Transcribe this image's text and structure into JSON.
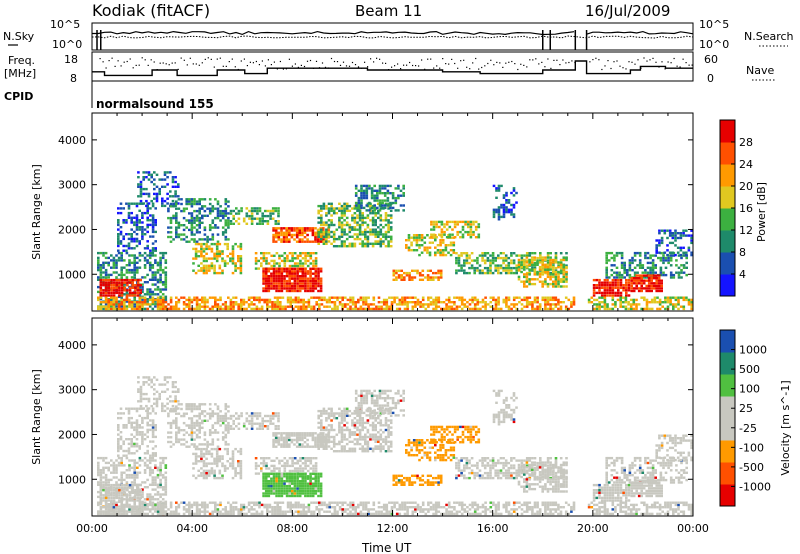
{
  "header": {
    "station": "Kodiak (fitACF)",
    "beam": "Beam 11",
    "date": "16/Jul/2009"
  },
  "status_panel": {
    "left_labels": {
      "nsky": "N.Sky",
      "freq": "Freq.",
      "freq_unit": "[MHz]",
      "cpid": "CPID"
    },
    "right_labels": {
      "nsearch": "N.Search",
      "nave": "Nave"
    },
    "noise_ticks": [
      "10^5",
      "10^0"
    ],
    "freq_ticks": [
      "18",
      "8"
    ],
    "nave_ticks": [
      "60",
      "0"
    ],
    "cpid_text": "normalsound 155"
  },
  "colors": {
    "power_scale": [
      "#1414ff",
      "#1a4fb0",
      "#1e8a6a",
      "#3cb040",
      "#e0c820",
      "#ff9a00",
      "#ff5000",
      "#e60000"
    ],
    "velocity_scale": [
      "#e60000",
      "#ff5000",
      "#ff9a00",
      "#c8c8c0",
      "#c8c8c0",
      "#50c040",
      "#1e8a6a",
      "#1a4fb0"
    ]
  },
  "chart_data": [
    {
      "type": "heatmap",
      "name": "Power",
      "ylabel": "Slant Range [km]",
      "ylim": [
        180,
        4600
      ],
      "y_ticks": [
        "4000",
        "3000",
        "2000",
        "1000"
      ],
      "colorbar_label": "Power [dB]",
      "colorbar_ticks": [
        "28",
        "24",
        "20",
        "16",
        "12",
        "8",
        "4"
      ]
    },
    {
      "type": "heatmap",
      "name": "Velocity",
      "ylabel": "Slant Range [km]",
      "ylim": [
        180,
        4600
      ],
      "y_ticks": [
        "4000",
        "3000",
        "2000",
        "1000"
      ],
      "colorbar_label": "Velocity [m s^-1]",
      "colorbar_ticks": [
        "1000",
        "500",
        "100",
        "25",
        "-25",
        "-100",
        "-500",
        "-1000"
      ],
      "xlabel": "Time UT",
      "x_ticks": [
        "00:00",
        "04:00",
        "08:00",
        "12:00",
        "16:00",
        "20:00",
        "00:00"
      ],
      "xlim": [
        0,
        24
      ]
    }
  ]
}
